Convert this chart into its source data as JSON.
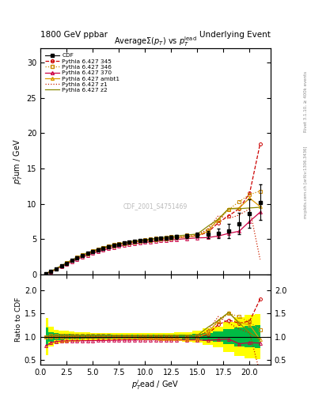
{
  "title_left": "1800 GeV ppbar",
  "title_right": "Underlying Event",
  "plot_title": "Average$\\Sigma(p_T)$ vs $p_T^{\\rm lead}$",
  "xlabel": "$p_T^l{\\rm ead}$ / GeV",
  "ylabel_main": "$p_T^s{\\rm um}$ / GeV",
  "ylabel_ratio": "Ratio to CDF",
  "watermark": "CDF_2001_S4751469",
  "right_label_top": "Rivet 3.1.10, ≥ 400k events",
  "right_label_bot": "mcplots.cern.ch [arXiv:1306.3436]",
  "xlim": [
    0,
    22
  ],
  "ylim_main": [
    0,
    32
  ],
  "ylim_ratio": [
    0.4,
    2.35
  ],
  "yticks_main": [
    0,
    5,
    10,
    15,
    20,
    25,
    30
  ],
  "yticks_ratio": [
    0.5,
    1.0,
    1.5,
    2.0
  ],
  "cdf_x": [
    0.5,
    1.0,
    1.5,
    2.0,
    2.5,
    3.0,
    3.5,
    4.0,
    4.5,
    5.0,
    5.5,
    6.0,
    6.5,
    7.0,
    7.5,
    8.0,
    8.5,
    9.0,
    9.5,
    10.0,
    10.5,
    11.0,
    11.5,
    12.0,
    12.5,
    13.0,
    14.0,
    15.0,
    16.0,
    17.0,
    18.0,
    19.0,
    20.0,
    21.0
  ],
  "cdf_y": [
    0.1,
    0.38,
    0.78,
    1.18,
    1.58,
    1.96,
    2.32,
    2.66,
    2.96,
    3.24,
    3.49,
    3.72,
    3.92,
    4.1,
    4.26,
    4.4,
    4.53,
    4.64,
    4.74,
    4.83,
    4.92,
    5.0,
    5.08,
    5.16,
    5.23,
    5.3,
    5.43,
    5.54,
    5.65,
    5.78,
    6.1,
    7.2,
    8.6,
    10.2
  ],
  "cdf_yerr": [
    0.02,
    0.04,
    0.06,
    0.08,
    0.1,
    0.11,
    0.12,
    0.13,
    0.14,
    0.14,
    0.15,
    0.15,
    0.16,
    0.16,
    0.17,
    0.17,
    0.18,
    0.18,
    0.19,
    0.19,
    0.2,
    0.2,
    0.21,
    0.22,
    0.23,
    0.24,
    0.28,
    0.35,
    0.5,
    0.65,
    1.0,
    1.5,
    2.0,
    2.5
  ],
  "py345_x": [
    0.5,
    1.0,
    1.5,
    2.0,
    2.5,
    3.0,
    3.5,
    4.0,
    4.5,
    5.0,
    5.5,
    6.0,
    6.5,
    7.0,
    7.5,
    8.0,
    8.5,
    9.0,
    9.5,
    10.0,
    10.5,
    11.0,
    11.5,
    12.0,
    12.5,
    13.0,
    14.0,
    15.0,
    16.0,
    17.0,
    18.0,
    19.0,
    20.0,
    21.0
  ],
  "py345_y": [
    0.1,
    0.38,
    0.77,
    1.17,
    1.57,
    1.95,
    2.3,
    2.63,
    2.93,
    3.21,
    3.46,
    3.68,
    3.88,
    4.06,
    4.21,
    4.35,
    4.47,
    4.58,
    4.67,
    4.76,
    4.84,
    4.92,
    5.0,
    5.07,
    5.13,
    5.2,
    5.33,
    5.44,
    5.95,
    7.3,
    8.3,
    9.3,
    11.5,
    18.5
  ],
  "py346_x": [
    0.5,
    1.0,
    1.5,
    2.0,
    2.5,
    3.0,
    3.5,
    4.0,
    4.5,
    5.0,
    5.5,
    6.0,
    6.5,
    7.0,
    7.5,
    8.0,
    8.5,
    9.0,
    9.5,
    10.0,
    10.5,
    11.0,
    11.5,
    12.0,
    12.5,
    13.0,
    14.0,
    15.0,
    16.0,
    17.0,
    18.0,
    19.0,
    20.0,
    21.0
  ],
  "py346_y": [
    0.1,
    0.39,
    0.8,
    1.21,
    1.62,
    2.01,
    2.38,
    2.72,
    3.03,
    3.31,
    3.57,
    3.8,
    4.0,
    4.18,
    4.34,
    4.48,
    4.61,
    4.72,
    4.82,
    4.91,
    5.0,
    5.09,
    5.17,
    5.25,
    5.32,
    5.4,
    5.53,
    5.66,
    6.3,
    7.6,
    9.2,
    10.3,
    11.3,
    11.8
  ],
  "py370_x": [
    0.5,
    1.0,
    1.5,
    2.0,
    2.5,
    3.0,
    3.5,
    4.0,
    4.5,
    5.0,
    5.5,
    6.0,
    6.5,
    7.0,
    7.5,
    8.0,
    8.5,
    9.0,
    9.5,
    10.0,
    10.5,
    11.0,
    11.5,
    12.0,
    12.5,
    13.0,
    14.0,
    15.0,
    16.0,
    17.0,
    18.0,
    19.0,
    20.0,
    21.0
  ],
  "py370_y": [
    0.08,
    0.33,
    0.7,
    1.07,
    1.44,
    1.79,
    2.12,
    2.43,
    2.71,
    2.97,
    3.21,
    3.42,
    3.62,
    3.79,
    3.95,
    4.09,
    4.21,
    4.32,
    4.42,
    4.51,
    4.59,
    4.67,
    4.74,
    4.81,
    4.87,
    4.94,
    5.06,
    5.16,
    5.2,
    5.42,
    5.8,
    6.1,
    7.5,
    8.8
  ],
  "pyambt1_x": [
    0.5,
    1.0,
    1.5,
    2.0,
    2.5,
    3.0,
    3.5,
    4.0,
    4.5,
    5.0,
    5.5,
    6.0,
    6.5,
    7.0,
    7.5,
    8.0,
    8.5,
    9.0,
    9.5,
    10.0,
    10.5,
    11.0,
    11.5,
    12.0,
    12.5,
    13.0,
    14.0,
    15.0,
    16.0,
    17.0,
    18.0,
    19.0,
    20.0,
    21.0
  ],
  "pyambt1_y": [
    0.1,
    0.38,
    0.77,
    1.17,
    1.57,
    1.95,
    2.3,
    2.63,
    2.93,
    3.21,
    3.46,
    3.68,
    3.88,
    4.06,
    4.21,
    4.35,
    4.47,
    4.58,
    4.67,
    4.76,
    4.84,
    4.92,
    5.0,
    5.07,
    5.13,
    5.2,
    5.33,
    5.46,
    6.1,
    7.8,
    9.3,
    9.4,
    10.8,
    9.6
  ],
  "pyz1_x": [
    0.5,
    1.0,
    1.5,
    2.0,
    2.5,
    3.0,
    3.5,
    4.0,
    4.5,
    5.0,
    5.5,
    6.0,
    6.5,
    7.0,
    7.5,
    8.0,
    8.5,
    9.0,
    9.5,
    10.0,
    10.5,
    11.0,
    11.5,
    12.0,
    12.5,
    13.0,
    14.0,
    15.0,
    16.0,
    17.0,
    18.0,
    19.0,
    20.0,
    21.0
  ],
  "pyz1_y": [
    0.1,
    0.38,
    0.77,
    1.17,
    1.57,
    1.95,
    2.3,
    2.63,
    2.93,
    3.21,
    3.46,
    3.68,
    3.88,
    4.06,
    4.21,
    4.35,
    4.47,
    4.58,
    4.67,
    4.76,
    4.84,
    4.92,
    5.0,
    5.07,
    5.13,
    5.2,
    5.33,
    5.52,
    6.4,
    8.3,
    7.9,
    8.4,
    9.3,
    2.1
  ],
  "pyz2_x": [
    0.5,
    1.0,
    1.5,
    2.0,
    2.5,
    3.0,
    3.5,
    4.0,
    4.5,
    5.0,
    5.5,
    6.0,
    6.5,
    7.0,
    7.5,
    8.0,
    8.5,
    9.0,
    9.5,
    10.0,
    10.5,
    11.0,
    11.5,
    12.0,
    12.5,
    13.0,
    14.0,
    15.0,
    16.0,
    17.0,
    18.0,
    19.0,
    20.0,
    21.0
  ],
  "pyz2_y": [
    0.1,
    0.39,
    0.8,
    1.21,
    1.62,
    2.01,
    2.38,
    2.72,
    3.03,
    3.31,
    3.57,
    3.8,
    4.0,
    4.18,
    4.34,
    4.48,
    4.61,
    4.72,
    4.82,
    4.91,
    5.0,
    5.1,
    5.19,
    5.28,
    5.35,
    5.43,
    5.57,
    5.7,
    6.8,
    7.8,
    9.3,
    9.3,
    9.4,
    9.5
  ],
  "color_345": "#cc0000",
  "color_346": "#cc8800",
  "color_370": "#cc0044",
  "color_ambt1": "#dd9900",
  "color_z1": "#cc2200",
  "color_z2": "#888800",
  "color_cdf": "#000000",
  "band_yellow": "#ffff00",
  "band_green": "#00bb44"
}
